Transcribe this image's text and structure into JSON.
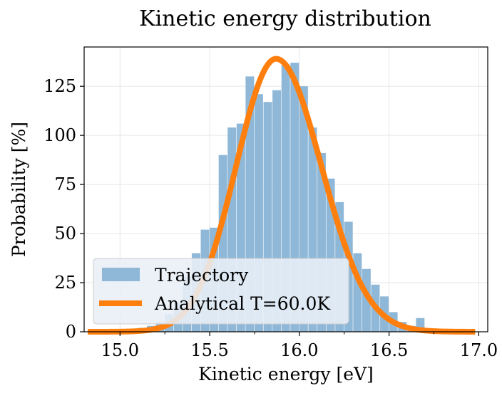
{
  "chart_data": {
    "type": "bar",
    "title": "Kinetic energy distribution",
    "xlabel": "Kinetic energy [eV]",
    "ylabel": "Probability [%]",
    "xlim": [
      14.8,
      17.05
    ],
    "ylim": [
      0,
      145
    ],
    "xticks": [
      15.0,
      15.5,
      16.0,
      16.5,
      17.0
    ],
    "xtick_labels": [
      "15.0",
      "15.5",
      "16.0",
      "16.5",
      "17.0"
    ],
    "yticks": [
      0,
      25,
      50,
      75,
      100,
      125
    ],
    "ytick_labels": [
      "0",
      "25",
      "50",
      "75",
      "100",
      "125"
    ],
    "grid": true,
    "legend_position": "lower-left",
    "colors": {
      "histogram": "#8fb8d8",
      "curve": "#ff7f0e",
      "grid": "#e6e6e6",
      "legend_bg": "#e9eff6"
    },
    "series": [
      {
        "name": "Trajectory",
        "kind": "histogram",
        "bin_width": 0.0475,
        "bin_starts": [
          15.05,
          15.1,
          15.15,
          15.2,
          15.25,
          15.3,
          15.35,
          15.4,
          15.45,
          15.5,
          15.55,
          15.6,
          15.65,
          15.7,
          15.75,
          15.8,
          15.85,
          15.9,
          15.95,
          16.0,
          16.05,
          16.1,
          16.15,
          16.2,
          16.25,
          16.3,
          16.35,
          16.4,
          16.45,
          16.5,
          16.55,
          16.6,
          16.65
        ],
        "values": [
          1,
          2,
          3,
          5,
          9,
          15,
          28,
          40,
          52,
          53,
          90,
          104,
          106,
          130,
          121,
          117,
          123,
          136,
          137,
          125,
          104,
          91,
          78,
          66,
          56,
          40,
          32,
          24,
          18,
          10,
          5,
          3,
          7
        ]
      },
      {
        "name": "Analytical T=60.0K",
        "kind": "line",
        "peak_x": 15.87,
        "peak_y": 139,
        "x_range": [
          14.82,
          16.98
        ]
      }
    ]
  }
}
